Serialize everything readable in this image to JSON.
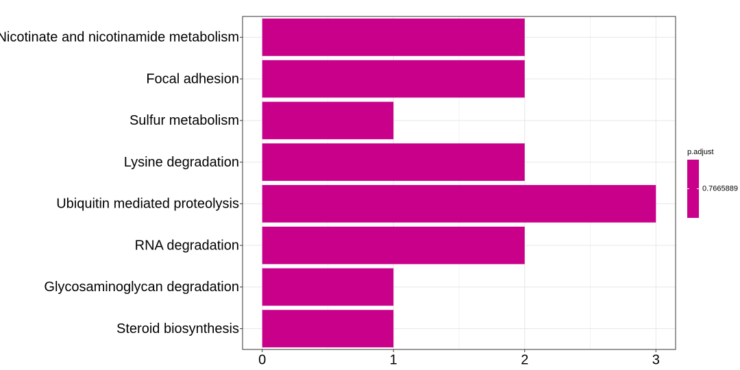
{
  "chart_data": {
    "type": "barh",
    "categories": [
      "Nicotinate and nicotinamide metabolism",
      "Focal adhesion",
      "Sulfur metabolism",
      "Lysine degradation",
      "Ubiquitin mediated proteolysis",
      "RNA degradation",
      "Glycosaminoglycan degradation",
      "Steroid biosynthesis"
    ],
    "values": [
      2,
      2,
      1,
      2,
      3,
      2,
      1,
      1
    ],
    "color": "#c8008a",
    "xlim": [
      -0.15,
      3.15
    ],
    "xticks": [
      0,
      1,
      2,
      3
    ],
    "grid": true,
    "legend": {
      "title": "p.adjust",
      "ticks": [
        0.7665889
      ],
      "color": "#c8008a",
      "position": "right"
    }
  }
}
